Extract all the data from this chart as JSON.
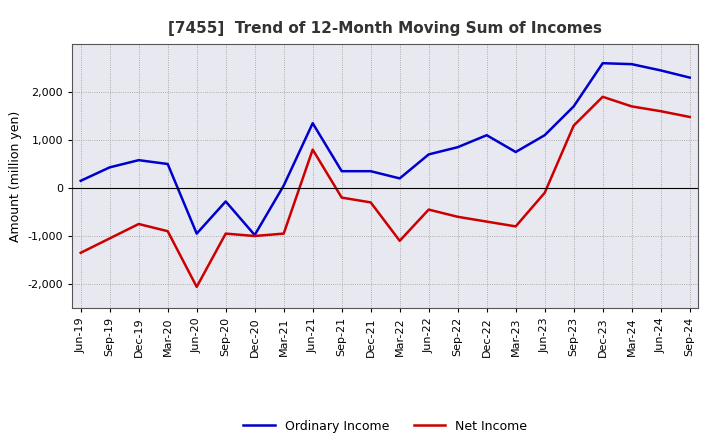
{
  "title": "[7455]  Trend of 12-Month Moving Sum of Incomes",
  "ylabel": "Amount (million yen)",
  "x_labels": [
    "Jun-19",
    "Sep-19",
    "Dec-19",
    "Mar-20",
    "Jun-20",
    "Sep-20",
    "Dec-20",
    "Mar-21",
    "Jun-21",
    "Sep-21",
    "Dec-21",
    "Mar-22",
    "Jun-22",
    "Sep-22",
    "Dec-22",
    "Mar-23",
    "Jun-23",
    "Sep-23",
    "Dec-23",
    "Mar-24",
    "Jun-24",
    "Sep-24"
  ],
  "ordinary_income": [
    150,
    430,
    580,
    500,
    -950,
    -280,
    -980,
    50,
    1350,
    350,
    350,
    200,
    700,
    850,
    1100,
    750,
    1100,
    1700,
    2600,
    2580,
    2450,
    2300
  ],
  "net_income": [
    -1350,
    -1050,
    -750,
    -900,
    -2060,
    -950,
    -1000,
    -950,
    800,
    -200,
    -300,
    -1100,
    -450,
    -600,
    -700,
    -800,
    -100,
    1300,
    1900,
    1700,
    1600,
    1480
  ],
  "ordinary_color": "#0000cc",
  "net_color": "#cc0000",
  "ylim": [
    -2500,
    3000
  ],
  "yticks": [
    -2000,
    -1000,
    0,
    1000,
    2000
  ],
  "background_color": "#ffffff",
  "plot_bg_color": "#e8e8f0",
  "grid_color": "#999999",
  "title_fontsize": 11,
  "axis_fontsize": 9,
  "tick_fontsize": 8,
  "legend_fontsize": 9
}
